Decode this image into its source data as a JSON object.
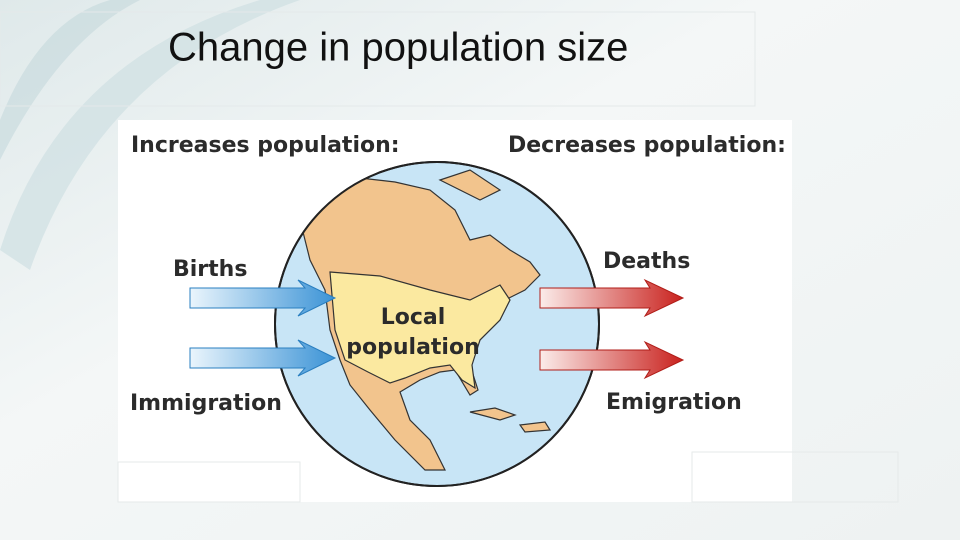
{
  "header": {
    "title": "Change in population size"
  },
  "diagram": {
    "increases_heading": "Increases population:",
    "decreases_heading": "Decreases population:",
    "inputs": [
      "Births",
      "Immigration"
    ],
    "outputs": [
      "Deaths",
      "Emigration"
    ],
    "center_label": [
      "Local",
      "population"
    ]
  }
}
